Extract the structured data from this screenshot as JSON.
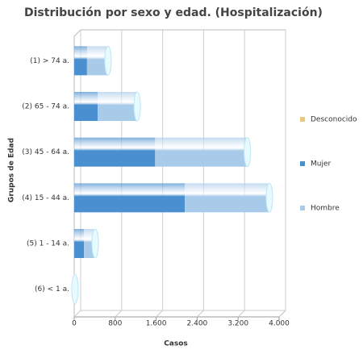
{
  "chart_data": {
    "type": "bar",
    "orientation": "horizontal",
    "stacked": true,
    "title": "Distribución por sexo y edad. (Hospitalización)",
    "x_label": "Casos",
    "y_label": "Grupos de Edad",
    "categories": [
      "(1) > 74 a.",
      "(2) 65 - 74 a.",
      "(3) 45 - 64 a.",
      "(4) 15 - 44 a.",
      "(5) 1 - 14 a.",
      "(6) < 1 a."
    ],
    "series": [
      {
        "name": "Mujer",
        "color": "#4a8fcf",
        "values": [
          250,
          460,
          1580,
          2160,
          190,
          5
        ]
      },
      {
        "name": "Hombre",
        "color": "#a9cbea",
        "values": [
          410,
          770,
          1800,
          1650,
          220,
          10
        ]
      },
      {
        "name": "Desconocido",
        "color": "#e8c87a",
        "values": [
          0,
          0,
          0,
          0,
          0,
          0
        ]
      }
    ],
    "legend_order": [
      2,
      0,
      1
    ],
    "xlim": [
      0,
      4000
    ],
    "xticks": [
      0,
      800,
      {
        "value": 1600,
        "label": "1.600"
      },
      {
        "value": 2400,
        "label": "2.400"
      },
      {
        "value": 3200,
        "label": "3.200"
      },
      {
        "value": 4000,
        "label": "4.000"
      }
    ],
    "grid": true,
    "legend": "right"
  }
}
